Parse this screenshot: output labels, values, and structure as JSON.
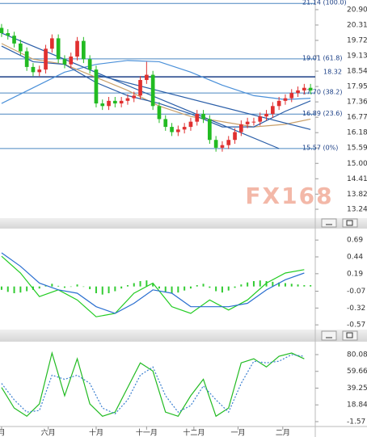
{
  "chart_data": [
    {
      "type": "candlestick",
      "xlim": [
        -0.25,
        49.75
      ],
      "ylim": [
        12.9,
        21.27
      ],
      "yticks": [
        {
          "value": 20.9,
          "label": "20.90"
        },
        20.31,
        19.72,
        19.13,
        18.54,
        17.95,
        17.36,
        16.77,
        16.18,
        15.59,
        {
          "value": 15.0,
          "label": "15.00"
        },
        14.41,
        13.82,
        13.24
      ],
      "open": [
        20.2,
        20.0,
        19.9,
        19.6,
        19.3,
        18.7,
        18.5,
        18.6,
        19.4,
        19.8,
        19.0,
        18.8,
        19.1,
        19.7,
        19.0,
        18.6,
        17.3,
        17.2,
        17.4,
        17.3,
        17.4,
        17.5,
        17.6,
        18.2,
        18.4,
        17.2,
        16.7,
        16.4,
        16.2,
        16.3,
        16.4,
        16.6,
        16.9,
        16.7,
        15.9,
        15.6,
        15.7,
        15.9,
        16.2,
        16.5,
        16.6,
        16.6,
        16.8,
        16.9,
        17.2,
        17.4,
        17.5,
        17.7,
        17.8,
        17.9
      ],
      "high": [
        20.35,
        20.15,
        20.05,
        19.75,
        19.45,
        18.85,
        18.75,
        19.55,
        19.95,
        19.95,
        19.15,
        19.25,
        19.85,
        19.85,
        19.15,
        18.75,
        17.45,
        17.55,
        17.55,
        17.55,
        17.65,
        17.75,
        18.35,
        18.9,
        18.55,
        17.35,
        16.85,
        16.55,
        16.45,
        16.55,
        16.75,
        17.05,
        17.05,
        16.85,
        16.05,
        15.85,
        16.05,
        16.35,
        16.65,
        16.75,
        16.75,
        16.95,
        17.05,
        17.35,
        17.55,
        17.65,
        17.85,
        17.95,
        18.05,
        18.05
      ],
      "low": [
        19.85,
        19.75,
        19.45,
        19.15,
        18.55,
        18.35,
        18.35,
        18.45,
        19.25,
        18.85,
        18.65,
        18.65,
        18.95,
        18.85,
        18.45,
        17.15,
        17.05,
        17.05,
        17.15,
        17.15,
        17.25,
        17.35,
        17.45,
        18.05,
        17.05,
        16.55,
        16.25,
        16.05,
        16.05,
        16.15,
        16.25,
        16.45,
        16.55,
        15.75,
        15.45,
        15.45,
        15.55,
        15.75,
        16.05,
        16.35,
        16.45,
        16.45,
        16.65,
        16.75,
        17.05,
        17.25,
        17.35,
        17.55,
        17.65,
        17.65
      ],
      "close": [
        20.0,
        19.9,
        19.6,
        19.3,
        18.7,
        18.5,
        18.6,
        19.4,
        19.8,
        19.0,
        18.8,
        19.1,
        19.7,
        19.0,
        18.6,
        17.3,
        17.2,
        17.4,
        17.3,
        17.4,
        17.5,
        17.6,
        18.2,
        18.4,
        17.2,
        16.7,
        16.4,
        16.2,
        16.3,
        16.4,
        16.6,
        16.9,
        16.7,
        15.9,
        15.6,
        15.7,
        15.9,
        16.2,
        16.5,
        16.6,
        16.6,
        16.8,
        16.9,
        17.2,
        17.4,
        17.5,
        17.7,
        17.8,
        17.9,
        17.8
      ],
      "up_color": "#e03030",
      "down_color": "#22bb22",
      "lines": [
        {
          "color": "#4a90d9",
          "x": [
            0,
            5,
            10,
            15,
            20,
            25,
            30,
            35,
            40,
            45,
            49
          ],
          "values": [
            17.3,
            17.9,
            18.5,
            18.8,
            18.95,
            18.9,
            18.5,
            18.0,
            17.6,
            17.45,
            17.5
          ]
        },
        {
          "color": "#c9a06a",
          "x": [
            0,
            5,
            10,
            15,
            20,
            25,
            30,
            35,
            40,
            45,
            49
          ],
          "values": [
            19.6,
            19.0,
            18.8,
            18.3,
            17.8,
            17.2,
            16.8,
            16.6,
            16.4,
            16.5,
            16.7
          ]
        },
        {
          "color": "#2a5ea8",
          "x": [
            0,
            5,
            10,
            15,
            20,
            25,
            30,
            35,
            40,
            45,
            49
          ],
          "values": [
            19.5,
            18.9,
            18.8,
            18.1,
            17.6,
            17.3,
            16.9,
            16.4,
            16.4,
            17.0,
            17.4
          ]
        },
        {
          "color": "#2a5ea8",
          "x": [
            0,
            44
          ],
          "values": [
            20.0,
            15.57
          ]
        },
        {
          "color": "#2a5ea8",
          "x": [
            15,
            49
          ],
          "values": [
            18.4,
            16.3
          ]
        }
      ],
      "levels": [
        {
          "value": 21.14,
          "label": "21.14 (100.0)"
        },
        {
          "value": 19.01,
          "label": "19.01 (61.8)"
        },
        {
          "value": 17.7,
          "label": "17.70 (38.2)"
        },
        {
          "value": 16.89,
          "label": "16.89 (23.6)"
        },
        {
          "value": 15.57,
          "label": "15.57 (0%)"
        }
      ],
      "level_color": "#4a86c0",
      "last_price": 18.32,
      "last_color": "#1b3f86",
      "watermark": "FX168"
    },
    {
      "type": "macd",
      "xlim": [
        -0.25,
        49.75
      ],
      "ylim": [
        -0.64,
        0.86
      ],
      "yticks": [
        0.69,
        0.44,
        0.19,
        -0.07,
        -0.32,
        -0.57
      ],
      "histogram": [
        -0.05,
        -0.08,
        -0.1,
        -0.09,
        -0.07,
        -0.05,
        -0.03,
        0.02,
        0.04,
        0.01,
        -0.02,
        0.0,
        0.03,
        0.0,
        -0.04,
        -0.1,
        -0.12,
        -0.1,
        -0.07,
        -0.03,
        0.02,
        0.05,
        0.08,
        0.09,
        0.04,
        -0.03,
        -0.08,
        -0.1,
        -0.09,
        -0.06,
        -0.03,
        0.02,
        0.04,
        -0.02,
        -0.07,
        -0.09,
        -0.06,
        -0.02,
        0.03,
        0.06,
        0.08,
        0.09,
        0.08,
        0.07,
        0.06,
        0.05,
        0.04,
        0.03,
        0.02,
        0.02
      ],
      "hist_color": "#33cc33",
      "lines": [
        {
          "color": "#22cc22",
          "x": [
            0,
            3,
            6,
            9,
            12,
            15,
            18,
            21,
            24,
            27,
            30,
            33,
            36,
            39,
            42,
            45,
            48
          ],
          "values": [
            0.45,
            0.2,
            -0.15,
            -0.05,
            -0.2,
            -0.45,
            -0.4,
            -0.1,
            0.05,
            -0.3,
            -0.4,
            -0.2,
            -0.35,
            -0.2,
            0.05,
            0.2,
            0.25
          ]
        },
        {
          "color": "#2a6fd0",
          "x": [
            0,
            3,
            6,
            9,
            12,
            15,
            18,
            21,
            24,
            27,
            30,
            33,
            36,
            39,
            42,
            45,
            48
          ],
          "values": [
            0.5,
            0.3,
            0.05,
            -0.05,
            -0.1,
            -0.3,
            -0.4,
            -0.25,
            -0.05,
            -0.1,
            -0.3,
            -0.3,
            -0.3,
            -0.25,
            -0.05,
            0.1,
            0.2
          ]
        }
      ]
    },
    {
      "type": "line",
      "xlim": [
        -0.25,
        49.75
      ],
      "ylim": [
        -7.5,
        95.8
      ],
      "yticks": [
        80.08,
        59.66,
        39.25,
        18.84,
        -1.57
      ],
      "xticks": [
        {
          "value": 0,
          "label": "月"
        },
        {
          "value": 7.4,
          "label": "六月"
        },
        {
          "value": 15,
          "label": "十月"
        },
        {
          "value": 23,
          "label": "十一月"
        },
        {
          "value": 30.5,
          "label": "十二月"
        },
        {
          "value": 37.5,
          "label": "一月"
        },
        {
          "value": 44.6,
          "label": "二月"
        }
      ],
      "lines": [
        {
          "color": "#22bb22",
          "x": [
            0,
            2,
            4,
            6,
            8,
            10,
            12,
            14,
            16,
            18,
            20,
            22,
            24,
            26,
            28,
            30,
            32,
            34,
            36,
            38,
            40,
            42,
            44,
            46,
            48
          ],
          "values": [
            40,
            15,
            5,
            20,
            82,
            30,
            75,
            20,
            5,
            10,
            40,
            70,
            60,
            10,
            5,
            30,
            50,
            5,
            15,
            70,
            75,
            65,
            78,
            82,
            75
          ]
        },
        {
          "color": "#3a7fd0",
          "dash": true,
          "x": [
            0,
            2,
            4,
            6,
            8,
            10,
            12,
            14,
            16,
            18,
            20,
            22,
            24,
            26,
            28,
            30,
            32,
            34,
            36,
            38,
            40,
            42,
            44,
            46,
            48
          ],
          "values": [
            45,
            25,
            10,
            12,
            55,
            50,
            55,
            45,
            15,
            8,
            25,
            55,
            65,
            30,
            10,
            18,
            42,
            25,
            10,
            45,
            72,
            70,
            72,
            80,
            78
          ]
        }
      ]
    }
  ]
}
